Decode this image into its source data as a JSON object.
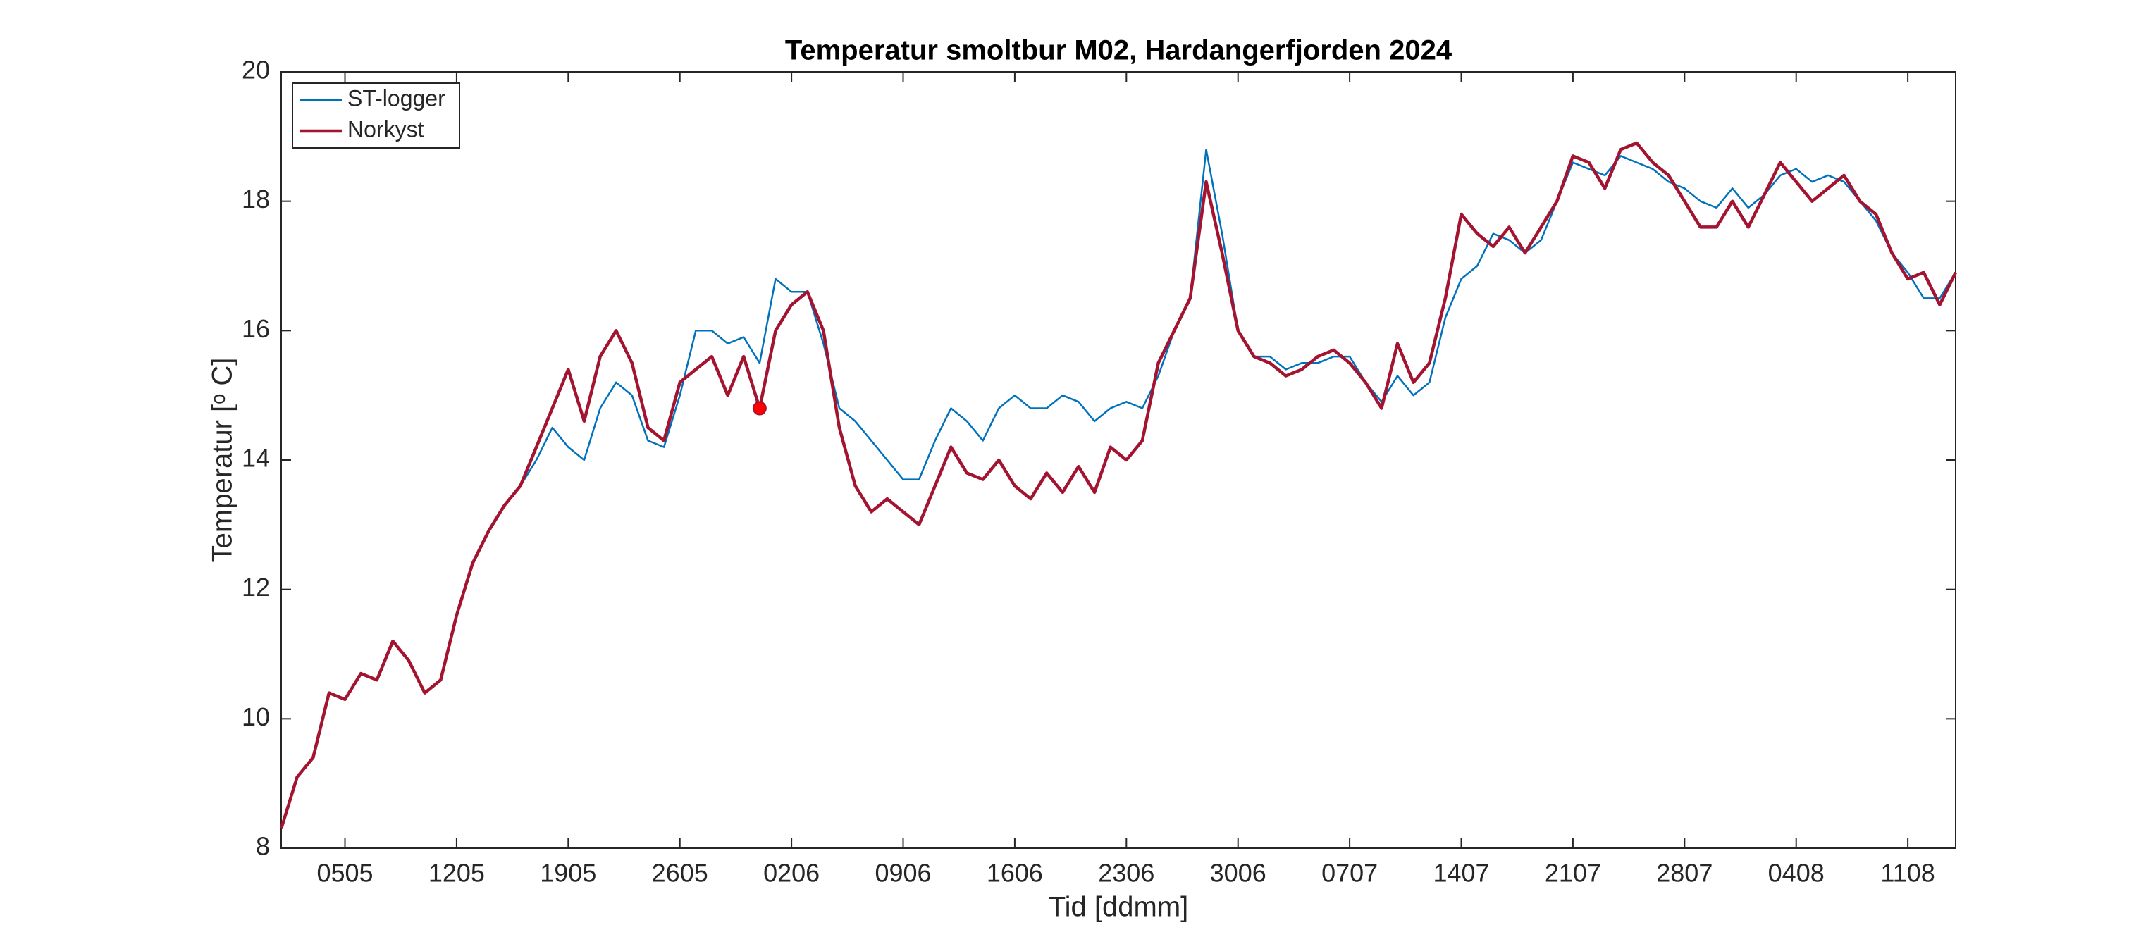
{
  "chart_data": {
    "type": "line",
    "title": "Temperatur smoltbur M02, Hardangerfjorden 2024",
    "xlabel": "Tid [ddmm]",
    "ylabel": "Temperatur [ᵒ C]",
    "categories": [
      "0105",
      "0205",
      "0305",
      "0405",
      "0505",
      "0605",
      "0705",
      "0805",
      "0905",
      "1005",
      "1105",
      "1205",
      "1305",
      "1405",
      "1505",
      "1605",
      "1705",
      "1805",
      "1905",
      "2005",
      "2105",
      "2205",
      "2305",
      "2405",
      "2505",
      "2605",
      "2705",
      "2805",
      "2905",
      "3005",
      "3105",
      "0106",
      "0206",
      "0306",
      "0406",
      "0506",
      "0606",
      "0706",
      "0806",
      "0906",
      "1006",
      "1106",
      "1206",
      "1306",
      "1406",
      "1506",
      "1606",
      "1706",
      "1806",
      "1906",
      "2006",
      "2106",
      "2206",
      "2306",
      "2406",
      "2506",
      "2606",
      "2706",
      "2806",
      "2906",
      "3006",
      "0107",
      "0207",
      "0307",
      "0407",
      "0507",
      "0607",
      "0707",
      "0807",
      "0907",
      "1007",
      "1107",
      "1207",
      "1307",
      "1407",
      "1507",
      "1607",
      "1707",
      "1807",
      "1907",
      "2007",
      "2107",
      "2207",
      "2307",
      "2407",
      "2507",
      "2607",
      "2707",
      "2807",
      "2907",
      "3007",
      "3107",
      "0108",
      "0208",
      "0308",
      "0408",
      "0508",
      "0608",
      "0708",
      "0808",
      "0908",
      "1008",
      "1108",
      "1208",
      "1308",
      "1408"
    ],
    "series": [
      {
        "name": "ST-logger",
        "color": "#0072bd",
        "values": [
          null,
          null,
          null,
          null,
          null,
          null,
          null,
          null,
          null,
          null,
          null,
          null,
          null,
          null,
          null,
          13.6,
          14.0,
          14.5,
          14.2,
          14.0,
          14.8,
          15.2,
          15.0,
          14.3,
          14.2,
          15.0,
          16.0,
          16.0,
          15.8,
          15.9,
          15.5,
          16.8,
          16.6,
          16.6,
          15.8,
          14.8,
          14.6,
          14.3,
          14.0,
          13.7,
          13.7,
          14.3,
          14.8,
          14.6,
          14.3,
          14.8,
          15.0,
          14.8,
          14.8,
          15.0,
          14.9,
          14.6,
          14.8,
          14.9,
          14.8,
          15.3,
          16.0,
          16.5,
          18.8,
          17.5,
          16.0,
          15.6,
          15.6,
          15.4,
          15.5,
          15.5,
          15.6,
          15.6,
          15.2,
          14.9,
          15.3,
          15.0,
          15.2,
          16.2,
          16.8,
          17.0,
          17.5,
          17.4,
          17.2,
          17.4,
          18.0,
          18.6,
          18.5,
          18.4,
          18.7,
          18.6,
          18.5,
          18.3,
          18.2,
          18.0,
          17.9,
          18.2,
          17.9,
          18.1,
          18.4,
          18.5,
          18.3,
          18.4,
          18.3,
          18.0,
          17.7,
          17.2,
          16.9,
          16.5,
          16.5,
          16.9
        ]
      },
      {
        "name": "Norkyst",
        "color": "#a2142f",
        "values": [
          8.3,
          9.1,
          9.4,
          10.4,
          10.3,
          10.7,
          10.6,
          11.2,
          10.9,
          10.4,
          10.6,
          11.6,
          12.4,
          12.9,
          13.3,
          13.6,
          14.2,
          14.8,
          15.4,
          14.6,
          15.6,
          16.0,
          15.5,
          14.5,
          14.3,
          15.2,
          15.4,
          15.6,
          15.0,
          15.6,
          14.8,
          16.0,
          16.4,
          16.6,
          16.0,
          14.5,
          13.6,
          13.2,
          13.4,
          13.2,
          13.0,
          13.6,
          14.2,
          13.8,
          13.7,
          14.0,
          13.6,
          13.4,
          13.8,
          13.5,
          13.9,
          13.5,
          14.2,
          14.0,
          14.3,
          15.5,
          16.0,
          16.5,
          18.3,
          17.2,
          16.0,
          15.6,
          15.5,
          15.3,
          15.4,
          15.6,
          15.7,
          15.5,
          15.2,
          14.8,
          15.8,
          15.2,
          15.5,
          16.5,
          17.8,
          17.5,
          17.3,
          17.6,
          17.2,
          17.6,
          18.0,
          18.7,
          18.6,
          18.2,
          18.8,
          18.9,
          18.6,
          18.4,
          18.0,
          17.6,
          17.6,
          18.0,
          17.6,
          18.1,
          18.6,
          18.3,
          18.0,
          18.2,
          18.4,
          18.0,
          17.8,
          17.2,
          16.8,
          16.9,
          16.4,
          16.9
        ]
      }
    ],
    "marker": {
      "x": "3105",
      "value": 14.8,
      "color": "#ff0000"
    },
    "xticks": [
      "0505",
      "1205",
      "1905",
      "2605",
      "0206",
      "0906",
      "1606",
      "2306",
      "3006",
      "0707",
      "1407",
      "2107",
      "2807",
      "0408",
      "1108"
    ],
    "ylim": [
      8,
      20
    ],
    "yticks": [
      8,
      10,
      12,
      14,
      16,
      18,
      20
    ],
    "legend": "upper left"
  }
}
